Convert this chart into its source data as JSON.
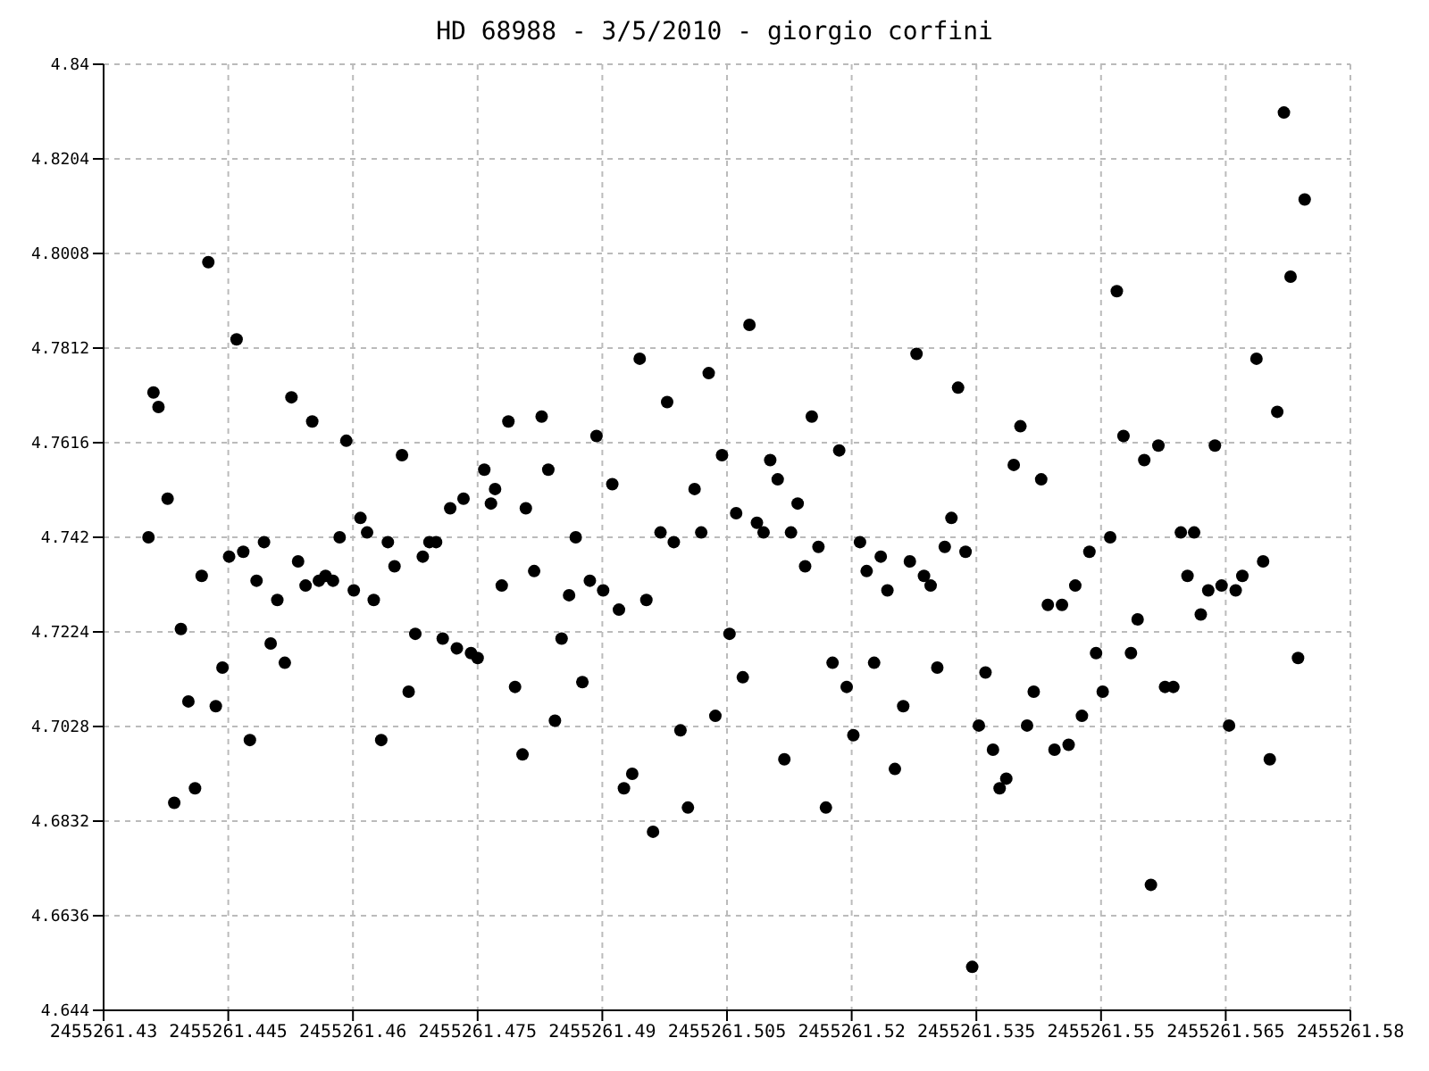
{
  "chart_data": {
    "type": "scatter",
    "title": "HD 68988 - 3/5/2010 - giorgio corfini",
    "x": [
      2455261.4354,
      2455261.436,
      2455261.4366,
      2455261.4377,
      2455261.4385,
      2455261.4393,
      2455261.4402,
      2455261.441,
      2455261.4418,
      2455261.4426,
      2455261.4435,
      2455261.4443,
      2455261.4451,
      2455261.446,
      2455261.4468,
      2455261.4476,
      2455261.4484,
      2455261.4493,
      2455261.4501,
      2455261.4509,
      2455261.4518,
      2455261.4526,
      2455261.4534,
      2455261.4543,
      2455261.4551,
      2455261.4559,
      2455261.4567,
      2455261.4576,
      2455261.4584,
      2455261.4592,
      2455261.4601,
      2455261.4609,
      2455261.4617,
      2455261.4625,
      2455261.4634,
      2455261.4642,
      2455261.465,
      2455261.4659,
      2455261.4667,
      2455261.4675,
      2455261.4684,
      2455261.4692,
      2455261.47,
      2455261.4708,
      2455261.4717,
      2455261.4725,
      2455261.4733,
      2455261.4742,
      2455261.475,
      2455261.4758,
      2455261.4766,
      2455261.4771,
      2455261.4779,
      2455261.4787,
      2455261.4795,
      2455261.4804,
      2455261.4808,
      2455261.4818,
      2455261.4827,
      2455261.4835,
      2455261.4843,
      2455261.4851,
      2455261.486,
      2455261.4868,
      2455261.4876,
      2455261.4885,
      2455261.4893,
      2455261.4901,
      2455261.4912,
      2455261.492,
      2455261.4926,
      2455261.4936,
      2455261.4945,
      2455261.4953,
      2455261.4961,
      2455261.497,
      2455261.4978,
      2455261.4986,
      2455261.4994,
      2455261.5003,
      2455261.5011,
      2455261.5019,
      2455261.5028,
      2455261.5036,
      2455261.5044,
      2455261.5053,
      2455261.5061,
      2455261.5069,
      2455261.5077,
      2455261.5086,
      2455261.5094,
      2455261.5102,
      2455261.5111,
      2455261.5119,
      2455261.5127,
      2455261.5135,
      2455261.5144,
      2455261.5152,
      2455261.516,
      2455261.5169,
      2455261.5177,
      2455261.5185,
      2455261.5194,
      2455261.5202,
      2455261.521,
      2455261.5218,
      2455261.5227,
      2455261.5235,
      2455261.5243,
      2455261.5252,
      2455261.5262,
      2455261.527,
      2455261.5278,
      2455261.5287,
      2455261.5295,
      2455261.5303,
      2455261.5312,
      2455261.532,
      2455261.5328,
      2455261.5337,
      2455261.5345,
      2455261.5353,
      2455261.5361,
      2455261.537,
      2455261.5378,
      2455261.5386,
      2455261.5395,
      2455261.5403,
      2455261.5411,
      2455261.5419,
      2455261.5428,
      2455261.5436,
      2455261.5444,
      2455261.5453,
      2455261.5461,
      2455261.5469,
      2455261.5477,
      2455261.5486,
      2455261.5494,
      2455261.5502,
      2455261.5511,
      2455261.5519,
      2455261.5527,
      2455261.5536,
      2455261.5544,
      2455261.5552,
      2455261.556,
      2455261.5569,
      2455261.5577,
      2455261.5587,
      2455261.5596,
      2455261.5604,
      2455261.5612,
      2455261.562,
      2455261.5629,
      2455261.5637,
      2455261.5645,
      2455261.5654,
      2455261.5662,
      2455261.567,
      2455261.5687,
      2455261.5695,
      2455261.5703,
      2455261.5712,
      2455261.572,
      2455261.5728,
      2455261.5737,
      2455261.5745
    ],
    "values": [
      4.742,
      4.772,
      4.769,
      4.75,
      4.687,
      4.723,
      4.708,
      4.69,
      4.734,
      4.799,
      4.707,
      4.715,
      4.738,
      4.783,
      4.739,
      4.7,
      4.733,
      4.741,
      4.72,
      4.729,
      4.716,
      4.771,
      4.737,
      4.732,
      4.766,
      4.733,
      4.734,
      4.733,
      4.742,
      4.762,
      4.731,
      4.746,
      4.743,
      4.729,
      4.7,
      4.741,
      4.736,
      4.759,
      4.71,
      4.722,
      4.738,
      4.741,
      4.741,
      4.721,
      4.748,
      4.719,
      4.75,
      4.718,
      4.717,
      4.756,
      4.749,
      4.752,
      4.732,
      4.766,
      4.711,
      4.697,
      4.748,
      4.735,
      4.767,
      4.756,
      4.704,
      4.721,
      4.73,
      4.742,
      4.712,
      4.733,
      4.763,
      4.731,
      4.753,
      4.727,
      4.69,
      4.693,
      4.779,
      4.729,
      4.681,
      4.743,
      4.77,
      4.741,
      4.702,
      4.686,
      4.752,
      4.743,
      4.776,
      4.705,
      4.759,
      4.722,
      4.747,
      4.713,
      4.786,
      4.745,
      4.743,
      4.758,
      4.754,
      4.696,
      4.743,
      4.749,
      4.736,
      4.767,
      4.74,
      4.686,
      4.716,
      4.76,
      4.711,
      4.701,
      4.741,
      4.735,
      4.716,
      4.738,
      4.731,
      4.694,
      4.707,
      4.737,
      4.78,
      4.734,
      4.732,
      4.715,
      4.74,
      4.746,
      4.773,
      4.739,
      4.653,
      4.703,
      4.714,
      4.698,
      4.69,
      4.692,
      4.757,
      4.765,
      4.703,
      4.71,
      4.754,
      4.728,
      4.698,
      4.728,
      4.699,
      4.732,
      4.705,
      4.739,
      4.718,
      4.71,
      4.742,
      4.793,
      4.763,
      4.718,
      4.725,
      4.758,
      4.67,
      4.761,
      4.711,
      4.711,
      4.743,
      4.734,
      4.743,
      4.726,
      4.731,
      4.761,
      4.732,
      4.703,
      4.731,
      4.734,
      4.779,
      4.737,
      4.696,
      4.768,
      4.83,
      4.796,
      4.717,
      4.812
    ],
    "color": "#000000",
    "marker": "circle",
    "grid": true,
    "xlim": [
      2455261.43,
      2455261.58
    ],
    "xticks": [
      2455261.43,
      2455261.445,
      2455261.46,
      2455261.475,
      2455261.49,
      2455261.505,
      2455261.52,
      2455261.535,
      2455261.55,
      2455261.565,
      2455261.58
    ],
    "ylim": [
      4.644,
      4.84
    ],
    "yticks": [
      4.644,
      4.6636,
      4.6832,
      4.7028,
      4.7224,
      4.742,
      4.7616,
      4.7812,
      4.8008,
      4.8204,
      4.84
    ]
  }
}
